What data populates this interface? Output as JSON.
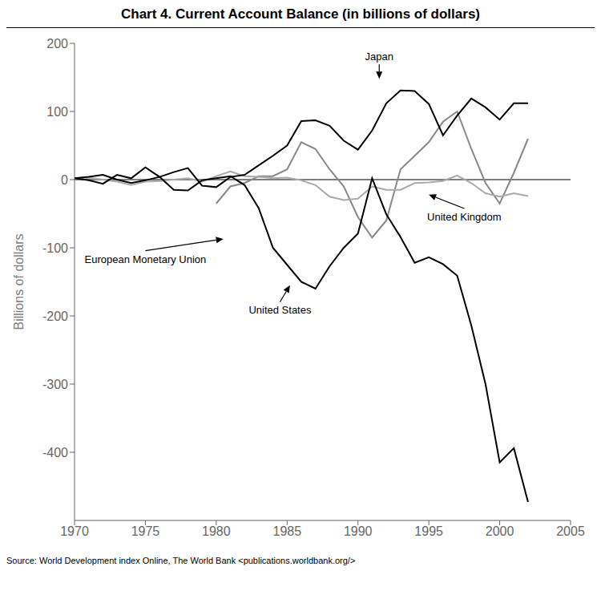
{
  "chart_data": {
    "type": "line",
    "title": "Chart 4. Current Account Balance (in billions of dollars)",
    "ylabel": "Billions of dollars",
    "source": "Source: World Development index Online, The World Bank <publications.worldbank.org/>",
    "x": [
      1970,
      1971,
      1972,
      1973,
      1974,
      1975,
      1976,
      1977,
      1978,
      1979,
      1980,
      1981,
      1982,
      1983,
      1984,
      1985,
      1986,
      1987,
      1988,
      1989,
      1990,
      1991,
      1992,
      1993,
      1994,
      1995,
      1996,
      1997,
      1998,
      1999,
      2000,
      2001,
      2002
    ],
    "xlim": [
      1970,
      2005
    ],
    "xticks": [
      1970,
      1975,
      1980,
      1985,
      1990,
      1995,
      2000,
      2005
    ],
    "ylim": [
      -500,
      200
    ],
    "yticks": [
      200,
      100,
      0,
      -100,
      -200,
      -300,
      -400
    ],
    "series": [
      {
        "name": "European Monetary Union",
        "color": "#888888",
        "values": [
          null,
          null,
          null,
          null,
          null,
          null,
          null,
          null,
          null,
          null,
          -35,
          -10,
          -5,
          5,
          5,
          15,
          55,
          45,
          15,
          -10,
          -55,
          -85,
          -60,
          15,
          35,
          55,
          85,
          100,
          45,
          -5,
          -35,
          10,
          60
        ]
      },
      {
        "name": "United Kingdom",
        "color": "#aaaaaa",
        "values": [
          2,
          3,
          0,
          -3,
          -8,
          -3,
          -2,
          0,
          2,
          -3,
          5,
          12,
          5,
          4,
          2,
          3,
          -1,
          -8,
          -25,
          -30,
          -28,
          -10,
          -15,
          -15,
          -5,
          -4,
          -2,
          6,
          -5,
          -20,
          -25,
          -20,
          -24
        ]
      },
      {
        "name": "Japan",
        "color": "#000000",
        "values": [
          2,
          4,
          7,
          0,
          -5,
          -1,
          4,
          11,
          17,
          -9,
          -11,
          4,
          7,
          21,
          35,
          50,
          86,
          87,
          79,
          57,
          44,
          72,
          112,
          131,
          130,
          111,
          65,
          94,
          119,
          106,
          88,
          112,
          112
        ]
      },
      {
        "name": "United States",
        "color": "#000000",
        "values": [
          2,
          -1,
          -6,
          7,
          2,
          18,
          4,
          -15,
          -16,
          -1,
          2,
          5,
          -8,
          -42,
          -100,
          -125,
          -150,
          -160,
          -127,
          -100,
          -79,
          2,
          -51,
          -84,
          -122,
          -114,
          -124,
          -141,
          -214,
          -300,
          -415,
          -394,
          -473
        ]
      }
    ],
    "annotations": [
      {
        "text": "Japan",
        "x": 1991.5,
        "y": 148,
        "text_x": 1991.5,
        "text_y": 175
      },
      {
        "text": "United States",
        "x": 1985.2,
        "y": -155,
        "text_x": 1984.5,
        "text_y": -197
      },
      {
        "text": "European Monetary Union",
        "x": 1980.5,
        "y": -87,
        "text_x": 1975,
        "text_y": -122
      },
      {
        "text": "United Kingdom",
        "x": 1995,
        "y": -22,
        "text_x": 1997.5,
        "text_y": -60
      }
    ]
  }
}
